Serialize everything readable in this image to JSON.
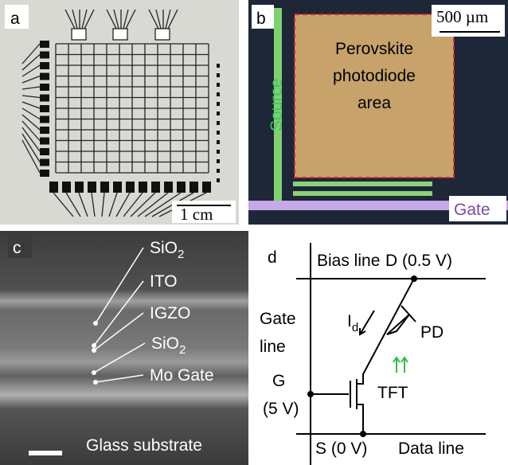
{
  "panels": {
    "a": {
      "label": "a",
      "scale_bar": "1 cm"
    },
    "b": {
      "label": "b",
      "scale_bar": "500 µm",
      "region_label": [
        "Perovskite",
        "photodiode",
        "area"
      ],
      "source": "Source",
      "gate": "Gate"
    },
    "c": {
      "label": "c",
      "layers": [
        {
          "base": "SiO",
          "sub": "2"
        },
        {
          "base": "ITO"
        },
        {
          "base": "IGZO"
        },
        {
          "base": "SiO",
          "sub": "2"
        },
        {
          "base": "Mo Gate"
        }
      ],
      "substrate": "Glass substrate"
    },
    "d": {
      "label": "d",
      "bias_line": "Bias line",
      "drain": "D (0.5 V)",
      "gate_line": [
        "Gate",
        "line"
      ],
      "current": {
        "base": "I",
        "sub": "d"
      },
      "photodiode": "PD",
      "gate": [
        "G",
        "(5 V)"
      ],
      "transistor": "TFT",
      "source": "S (0 V)",
      "data_line": "Data line"
    }
  }
}
